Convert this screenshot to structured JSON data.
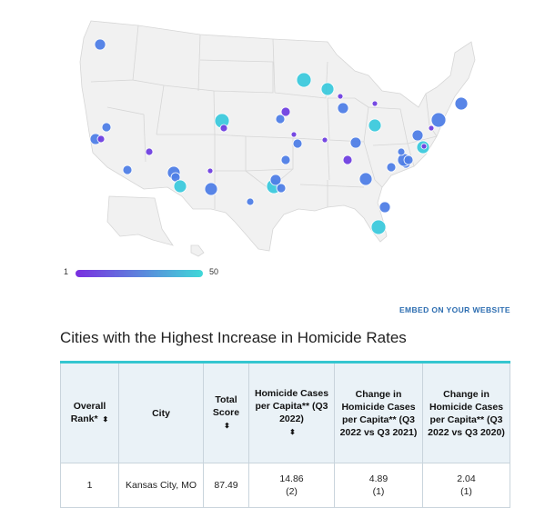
{
  "map": {
    "legend": {
      "min_label": "1",
      "max_label": "50",
      "color_low": "#7a2fe0",
      "color_high": "#3fd8d8"
    },
    "marker_colors": {
      "low": "#6f3fe0",
      "mid": "#4f7ee6",
      "high": "#3cc9dc"
    }
  },
  "embed_link": "EMBED ON YOUR WEBSITE",
  "table": {
    "title": "Cities with the Highest Increase in Homicide Rates",
    "headers": [
      {
        "label": "Overall Rank*",
        "sort_icon": "⬍"
      },
      {
        "label": "City",
        "sort_icon": ""
      },
      {
        "label": "Total Score",
        "sort_icon": "⬍"
      },
      {
        "label": "Homicide Cases per Capita** (Q3 2022)",
        "sort_icon": "⬍"
      },
      {
        "label": "Change in Homicide Cases per Capita** (Q3 2022 vs Q3 2021)",
        "sort_icon": "⬍"
      },
      {
        "label": "Change in Homicide Cases per Capita** (Q3 2022 vs Q3 2020)",
        "sort_icon": "⬍"
      }
    ],
    "rows": [
      {
        "rank": "1",
        "city": "Kansas City, MO",
        "total_score": "87.49",
        "cases_value": "14.86",
        "cases_rank": "(2)",
        "change21_value": "4.89",
        "change21_rank": "(1)",
        "change20_value": "2.04",
        "change20_rank": "(1)"
      }
    ]
  },
  "colors": {
    "accent": "#35c6d0",
    "header_bg": "#eaf2f7",
    "link": "#2b6cb0"
  }
}
